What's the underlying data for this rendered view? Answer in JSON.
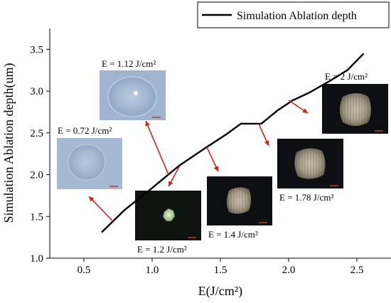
{
  "chart_data": {
    "type": "line",
    "title": "",
    "xlabel": "E(J/cm²)",
    "ylabel": "Simulation Ablation depth(um)",
    "xlim": [
      0.25,
      2.75
    ],
    "ylim": [
      1.0,
      3.75
    ],
    "xticks": [
      "0.5",
      "1.0",
      "1.5",
      "2.0",
      "2.5"
    ],
    "yticks": [
      "1.0",
      "1.5",
      "2.0",
      "2.5",
      "3.0",
      "3.5"
    ],
    "grid": false,
    "legend_position": "top-right",
    "series": [
      {
        "name": "Simulation Ablation depth",
        "color": "#000000",
        "x": [
          0.63,
          0.8,
          1.0,
          1.2,
          1.4,
          1.55,
          1.65,
          1.8,
          1.92,
          2.03,
          2.15,
          2.3,
          2.43,
          2.55
        ],
        "y": [
          1.31,
          1.58,
          1.84,
          2.11,
          2.33,
          2.49,
          2.61,
          2.61,
          2.77,
          2.89,
          2.98,
          3.12,
          3.25,
          3.45
        ]
      }
    ],
    "annotations": [
      {
        "text": "E = 0.72 J/cm²",
        "point": [
          0.72,
          1.43
        ],
        "image": "faint-crater"
      },
      {
        "text": "E = 1.12 J/cm²",
        "point": [
          1.12,
          2.0
        ],
        "image": "faint-crater-bright-spot"
      },
      {
        "text": "E = 1.2 J/cm²",
        "point": [
          1.2,
          2.1
        ],
        "image": "small-crater"
      },
      {
        "text": "E = 1.4 J/cm²",
        "point": [
          1.4,
          2.33
        ],
        "image": "crater"
      },
      {
        "text": "E = 1.78 J/cm²",
        "point": [
          1.78,
          2.61
        ],
        "image": "crater"
      },
      {
        "text": "E = 2 J/cm²",
        "point": [
          2.0,
          2.89
        ],
        "image": "crater"
      }
    ]
  }
}
